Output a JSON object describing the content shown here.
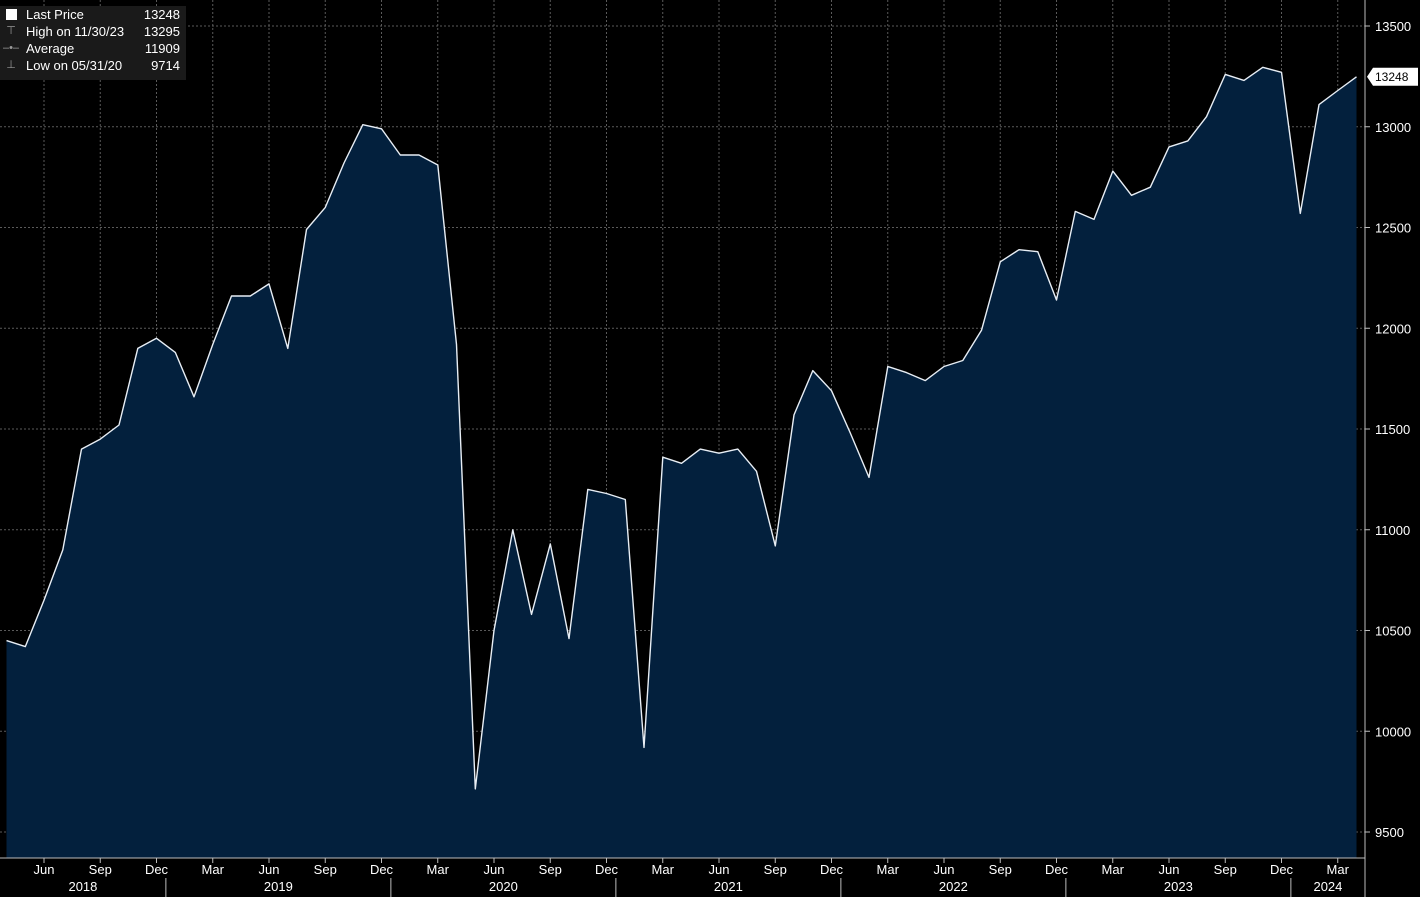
{
  "colors": {
    "background": "#000000",
    "area_fill": "#03203d",
    "line": "#e8eef5",
    "grid": "#5a5a5a",
    "legend_bg": "#1a1a1a",
    "last_price_tag_bg": "#ffffff"
  },
  "legend": {
    "rows": [
      {
        "label": "Last Price",
        "value": "13248",
        "icon": "white-square-icon"
      },
      {
        "label": "High on 11/30/23",
        "value": "13295",
        "icon": "high-marker-icon"
      },
      {
        "label": "Average",
        "value": "11909",
        "icon": "average-marker-icon"
      },
      {
        "label": "Low on 05/31/20",
        "value": "9714",
        "icon": "low-marker-icon"
      }
    ]
  },
  "last_price_tag": "13248",
  "chart_data": {
    "type": "area",
    "grid": true,
    "ylim": [
      9370,
      13580
    ],
    "yticks": [
      9500,
      10000,
      10500,
      11000,
      11500,
      12000,
      12500,
      13000,
      13500
    ],
    "ytick_labels": [
      "9500",
      "10000",
      "10500",
      "11000",
      "11500",
      "12000",
      "12500",
      "13000",
      "13500"
    ],
    "x_month_ticks": [
      {
        "date": "2018-06",
        "label": "Jun"
      },
      {
        "date": "2018-09",
        "label": "Sep"
      },
      {
        "date": "2018-12",
        "label": "Dec"
      },
      {
        "date": "2019-03",
        "label": "Mar"
      },
      {
        "date": "2019-06",
        "label": "Jun"
      },
      {
        "date": "2019-09",
        "label": "Sep"
      },
      {
        "date": "2019-12",
        "label": "Dec"
      },
      {
        "date": "2020-03",
        "label": "Mar"
      },
      {
        "date": "2020-06",
        "label": "Jun"
      },
      {
        "date": "2020-09",
        "label": "Sep"
      },
      {
        "date": "2020-12",
        "label": "Dec"
      },
      {
        "date": "2021-03",
        "label": "Mar"
      },
      {
        "date": "2021-06",
        "label": "Jun"
      },
      {
        "date": "2021-09",
        "label": "Sep"
      },
      {
        "date": "2021-12",
        "label": "Dec"
      },
      {
        "date": "2022-03",
        "label": "Mar"
      },
      {
        "date": "2022-06",
        "label": "Jun"
      },
      {
        "date": "2022-09",
        "label": "Sep"
      },
      {
        "date": "2022-12",
        "label": "Dec"
      },
      {
        "date": "2023-03",
        "label": "Mar"
      },
      {
        "date": "2023-06",
        "label": "Jun"
      },
      {
        "date": "2023-09",
        "label": "Sep"
      },
      {
        "date": "2023-12",
        "label": "Dec"
      },
      {
        "date": "2024-03",
        "label": "Mar"
      }
    ],
    "x_year_labels": [
      "2018",
      "2019",
      "2020",
      "2021",
      "2022",
      "2023",
      "2024"
    ],
    "series": [
      {
        "dates": [
          "2018-04",
          "2018-05",
          "2018-06",
          "2018-07",
          "2018-08",
          "2018-09",
          "2018-10",
          "2018-11",
          "2018-12",
          "2019-01",
          "2019-02",
          "2019-03",
          "2019-04",
          "2019-05",
          "2019-06",
          "2019-07",
          "2019-08",
          "2019-09",
          "2019-10",
          "2019-11",
          "2019-12",
          "2020-01",
          "2020-02",
          "2020-03",
          "2020-04",
          "2020-05",
          "2020-06",
          "2020-07",
          "2020-08",
          "2020-09",
          "2020-10",
          "2020-11",
          "2020-12",
          "2021-01",
          "2021-02",
          "2021-03",
          "2021-04",
          "2021-05",
          "2021-06",
          "2021-07",
          "2021-08",
          "2021-09",
          "2021-10",
          "2021-11",
          "2021-12",
          "2022-01",
          "2022-02",
          "2022-03",
          "2022-04",
          "2022-05",
          "2022-06",
          "2022-07",
          "2022-08",
          "2022-09",
          "2022-10",
          "2022-11",
          "2022-12",
          "2023-01",
          "2023-02",
          "2023-03",
          "2023-04",
          "2023-05",
          "2023-06",
          "2023-07",
          "2023-08",
          "2023-09",
          "2023-10",
          "2023-11",
          "2023-12",
          "2024-01",
          "2024-02",
          "2024-03",
          "2024-04"
        ],
        "values": [
          10450,
          10420,
          10650,
          10900,
          11400,
          11450,
          11520,
          11900,
          11950,
          11880,
          11660,
          11920,
          12160,
          12160,
          12220,
          11900,
          12490,
          12600,
          12820,
          13010,
          12990,
          12860,
          12860,
          12810,
          11920,
          9714,
          10500,
          11000,
          10580,
          10930,
          10460,
          11200,
          11180,
          11150,
          9920,
          11360,
          11330,
          11400,
          11380,
          11400,
          11290,
          10920,
          11570,
          11790,
          11690,
          11480,
          11260,
          11810,
          11780,
          11740,
          11810,
          11840,
          11990,
          12330,
          12390,
          12380,
          12140,
          12580,
          12540,
          12780,
          12660,
          12700,
          12900,
          12930,
          13050,
          13260,
          13230,
          13295,
          13270,
          12570,
          13110,
          13180,
          13248
        ]
      }
    ]
  }
}
